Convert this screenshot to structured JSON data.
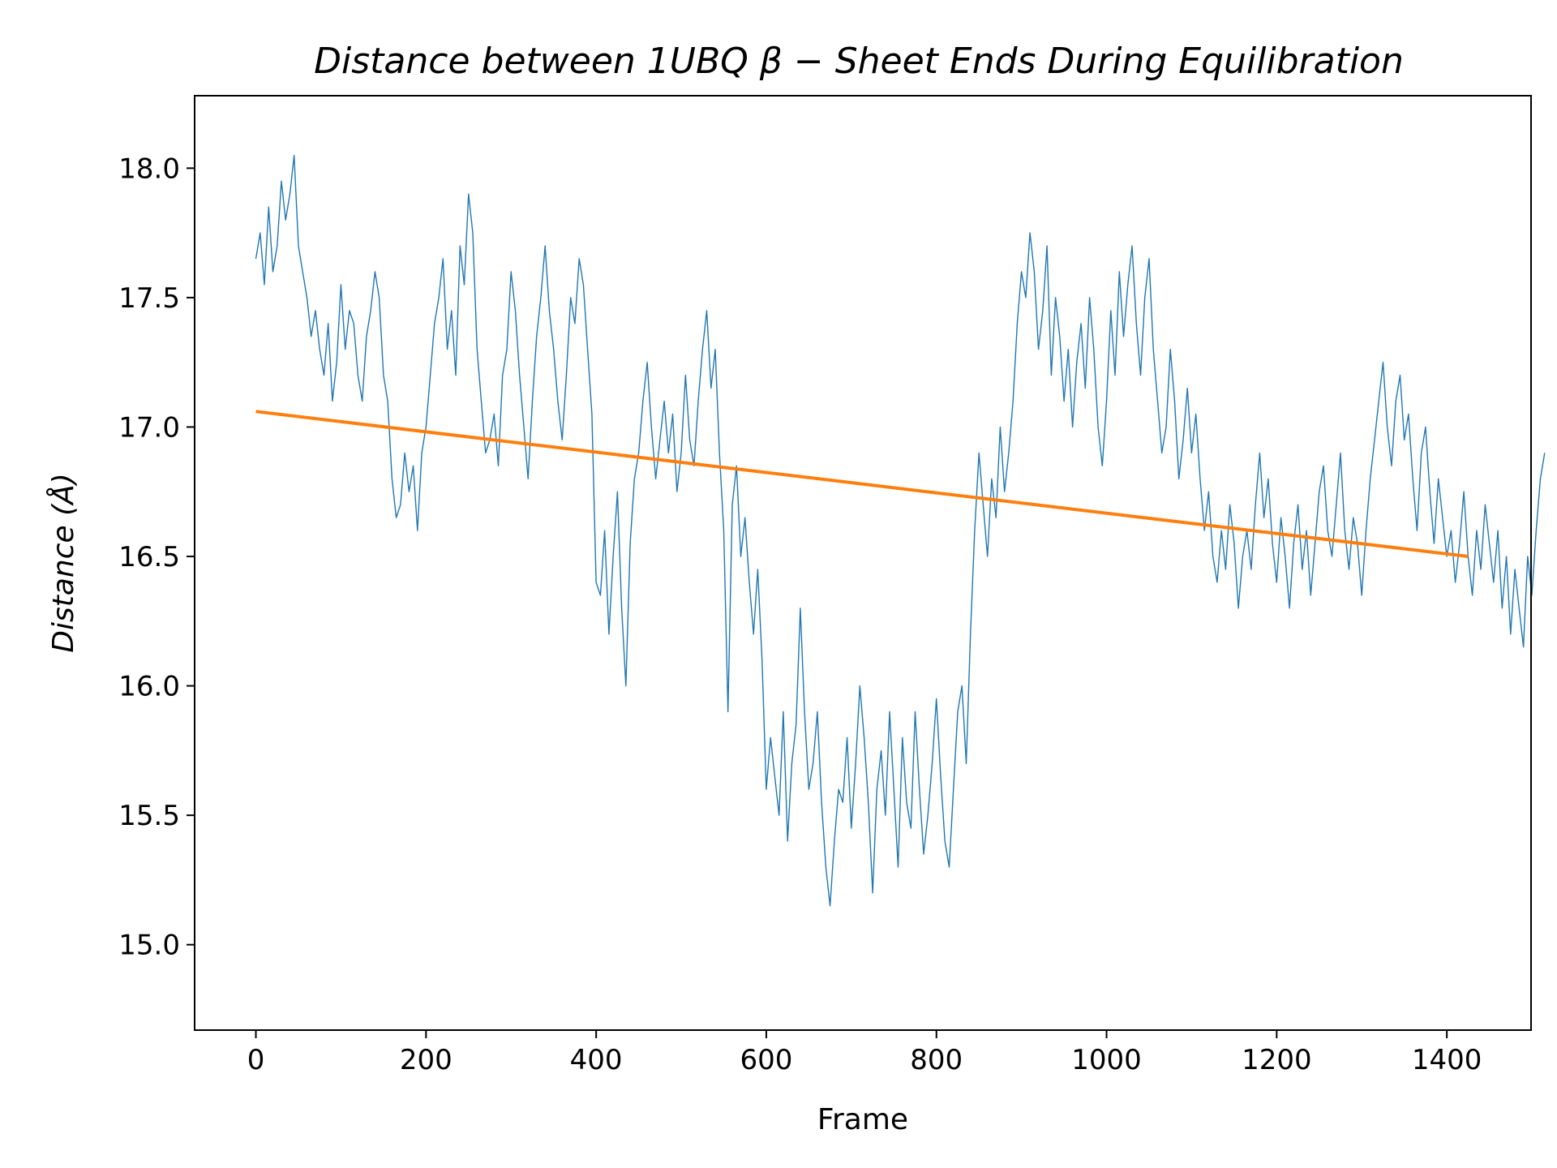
{
  "chart_data": {
    "type": "line",
    "title": "Distance between 1UBQ β − Sheet Ends During Equilibration",
    "xlabel": "Frame",
    "ylabel": "Distance (Å)",
    "xlim": [
      -72,
      1499
    ],
    "ylim": [
      14.67,
      18.28
    ],
    "xticks": [
      0,
      200,
      400,
      600,
      800,
      1000,
      1200,
      1400
    ],
    "yticks": [
      15.0,
      15.5,
      16.0,
      16.5,
      17.0,
      17.5,
      18.0
    ],
    "grid": false,
    "colors": {
      "distance": "#1f77b4",
      "trend": "#ff7f0e"
    },
    "series": [
      {
        "key": "distance",
        "type": "line",
        "x_start": 0,
        "x_step": 5,
        "values": [
          17.65,
          17.75,
          17.55,
          17.85,
          17.6,
          17.7,
          17.95,
          17.8,
          17.9,
          18.05,
          17.7,
          17.6,
          17.5,
          17.35,
          17.45,
          17.3,
          17.2,
          17.4,
          17.1,
          17.25,
          17.55,
          17.3,
          17.45,
          17.4,
          17.2,
          17.1,
          17.35,
          17.45,
          17.6,
          17.5,
          17.2,
          17.1,
          16.8,
          16.65,
          16.7,
          16.9,
          16.75,
          16.85,
          16.6,
          16.9,
          17.0,
          17.2,
          17.4,
          17.5,
          17.65,
          17.3,
          17.45,
          17.2,
          17.7,
          17.55,
          17.9,
          17.75,
          17.3,
          17.1,
          16.9,
          16.95,
          17.05,
          16.85,
          17.2,
          17.3,
          17.6,
          17.45,
          17.2,
          17.0,
          16.8,
          17.1,
          17.35,
          17.5,
          17.7,
          17.45,
          17.3,
          17.1,
          16.95,
          17.2,
          17.5,
          17.4,
          17.65,
          17.55,
          17.3,
          17.05,
          16.4,
          16.35,
          16.6,
          16.2,
          16.5,
          16.75,
          16.3,
          16.0,
          16.55,
          16.8,
          16.9,
          17.1,
          17.25,
          17.0,
          16.8,
          16.95,
          17.1,
          16.9,
          17.05,
          16.75,
          16.9,
          17.2,
          16.95,
          16.85,
          17.1,
          17.3,
          17.45,
          17.15,
          17.3,
          16.9,
          16.6,
          15.9,
          16.7,
          16.85,
          16.5,
          16.65,
          16.4,
          16.2,
          16.45,
          16.1,
          15.6,
          15.8,
          15.65,
          15.5,
          15.9,
          15.4,
          15.7,
          15.85,
          16.3,
          15.9,
          15.6,
          15.7,
          15.9,
          15.55,
          15.3,
          15.15,
          15.4,
          15.6,
          15.55,
          15.8,
          15.45,
          15.7,
          16.0,
          15.8,
          15.55,
          15.2,
          15.6,
          15.75,
          15.5,
          15.9,
          15.6,
          15.3,
          15.8,
          15.55,
          15.45,
          15.9,
          15.6,
          15.35,
          15.5,
          15.7,
          15.95,
          15.65,
          15.4,
          15.3,
          15.6,
          15.9,
          16.0,
          15.7,
          16.2,
          16.6,
          16.9,
          16.7,
          16.5,
          16.8,
          16.65,
          17.0,
          16.75,
          16.9,
          17.1,
          17.4,
          17.6,
          17.5,
          17.75,
          17.6,
          17.3,
          17.45,
          17.7,
          17.2,
          17.5,
          17.35,
          17.1,
          17.3,
          17.0,
          17.25,
          17.4,
          17.15,
          17.5,
          17.3,
          17.0,
          16.85,
          17.1,
          17.45,
          17.2,
          17.6,
          17.35,
          17.55,
          17.7,
          17.4,
          17.2,
          17.5,
          17.65,
          17.3,
          17.1,
          16.9,
          17.0,
          17.3,
          17.1,
          16.8,
          16.95,
          17.15,
          16.9,
          17.05,
          16.8,
          16.6,
          16.75,
          16.5,
          16.4,
          16.6,
          16.45,
          16.7,
          16.55,
          16.3,
          16.5,
          16.6,
          16.45,
          16.7,
          16.9,
          16.65,
          16.8,
          16.55,
          16.4,
          16.65,
          16.5,
          16.3,
          16.55,
          16.7,
          16.45,
          16.6,
          16.35,
          16.55,
          16.75,
          16.85,
          16.6,
          16.5,
          16.7,
          16.9,
          16.6,
          16.45,
          16.65,
          16.55,
          16.35,
          16.6,
          16.8,
          16.95,
          17.1,
          17.25,
          17.0,
          16.85,
          17.1,
          17.2,
          16.95,
          17.05,
          16.8,
          16.6,
          16.9,
          17.0,
          16.75,
          16.55,
          16.8,
          16.65,
          16.5,
          16.6,
          16.4,
          16.55,
          16.75,
          16.5,
          16.35,
          16.6,
          16.45,
          16.7,
          16.55,
          16.4,
          16.6,
          16.3,
          16.5,
          16.2,
          16.45,
          16.3,
          16.15,
          16.5,
          16.35,
          16.6,
          16.8,
          16.9
        ]
      },
      {
        "key": "trend",
        "type": "line",
        "x": [
          0,
          1425
        ],
        "values": [
          17.06,
          16.5
        ]
      }
    ]
  }
}
